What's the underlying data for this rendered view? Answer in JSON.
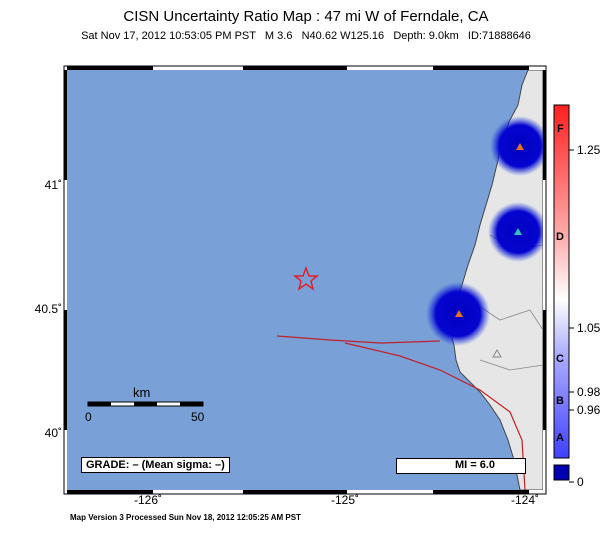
{
  "header": {
    "title": "CISN Uncertainty Ratio Map : 47 mi W of Ferndale, CA",
    "subtitle": "Sat Nov 17, 2012 10:53:05 PM PST   M 3.6   N40.62 W125.16   Depth: 9.0km   ID:71888646"
  },
  "map": {
    "lat_labels": [
      "41˚",
      "40.5˚",
      "40˚"
    ],
    "lon_labels": [
      "-126˚",
      "-125˚",
      "-124˚"
    ],
    "scale_unit": "km",
    "scale_start": "0",
    "scale_end": "50",
    "grade_text": "GRADE: – (Mean sigma: –)",
    "legend_text": "MI = 6.0",
    "colors": {
      "ocean": "#7aa0d8",
      "land": "#e6e6e6",
      "star": "#e0202a",
      "fault": "#c0202a",
      "station_blue": "#1010d0"
    }
  },
  "colorbar": {
    "grades": [
      "F",
      "D",
      "C",
      "B",
      "A"
    ],
    "values": [
      "1.25",
      "1.05",
      "0.98",
      "0.96",
      "0"
    ]
  },
  "footer": {
    "text": "Map Version 3 Processed Sun Nov 18, 2012 12:05:25 AM PST"
  }
}
